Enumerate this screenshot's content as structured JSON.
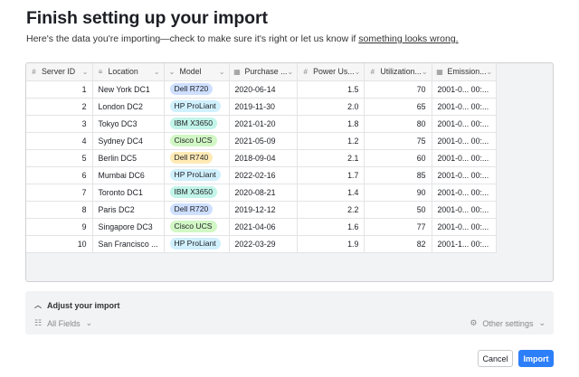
{
  "title": "Finish setting up your import",
  "subtitle": {
    "text": "Here's the data you're importing—check to make sure it's right or let us know if",
    "link": "something looks wrong."
  },
  "grid": {
    "columns": [
      {
        "label": "Server ID",
        "icon": "number-icon",
        "glyph": "#"
      },
      {
        "label": "Location",
        "icon": "text-icon",
        "glyph": "≡"
      },
      {
        "label": "Model",
        "icon": "single-select-icon",
        "glyph": "⌄"
      },
      {
        "label": "Purchase ...",
        "icon": "calendar-icon",
        "glyph": "▦"
      },
      {
        "label": "Power Us...",
        "icon": "number-icon",
        "glyph": "#"
      },
      {
        "label": "Utilization...",
        "icon": "number-icon",
        "glyph": "#"
      },
      {
        "label": "Emission...",
        "icon": "calendar-icon",
        "glyph": "▦"
      }
    ],
    "rows": [
      {
        "id": "1",
        "location": "New York DC1",
        "model": "Dell R720",
        "purchase": "2020-06-14",
        "power": "1.5",
        "util": "70",
        "emission": "2001-0... 00:..."
      },
      {
        "id": "2",
        "location": "London DC2",
        "model": "HP ProLiant",
        "purchase": "2019-11-30",
        "power": "2.0",
        "util": "65",
        "emission": "2001-0... 00:..."
      },
      {
        "id": "3",
        "location": "Tokyo DC3",
        "model": "IBM X3650",
        "purchase": "2021-01-20",
        "power": "1.8",
        "util": "80",
        "emission": "2001-0... 00:..."
      },
      {
        "id": "4",
        "location": "Sydney DC4",
        "model": "Cisco UCS",
        "purchase": "2021-05-09",
        "power": "1.2",
        "util": "75",
        "emission": "2001-0... 00:..."
      },
      {
        "id": "5",
        "location": "Berlin DC5",
        "model": "Dell R740",
        "purchase": "2018-09-04",
        "power": "2.1",
        "util": "60",
        "emission": "2001-0... 00:..."
      },
      {
        "id": "6",
        "location": "Mumbai DC6",
        "model": "HP ProLiant",
        "purchase": "2022-02-16",
        "power": "1.7",
        "util": "85",
        "emission": "2001-0... 00:..."
      },
      {
        "id": "7",
        "location": "Toronto DC1",
        "model": "IBM X3650",
        "purchase": "2020-08-21",
        "power": "1.4",
        "util": "90",
        "emission": "2001-0... 00:..."
      },
      {
        "id": "8",
        "location": "Paris DC2",
        "model": "Dell R720",
        "purchase": "2019-12-12",
        "power": "2.2",
        "util": "50",
        "emission": "2001-0... 00:..."
      },
      {
        "id": "9",
        "location": "Singapore DC3",
        "model": "Cisco UCS",
        "purchase": "2021-04-06",
        "power": "1.6",
        "util": "77",
        "emission": "2001-0... 00:..."
      },
      {
        "id": "10",
        "location": "San Francisco ...",
        "model": "HP ProLiant",
        "purchase": "2022-03-29",
        "power": "1.9",
        "util": "82",
        "emission": "2001-1... 00:..."
      }
    ]
  },
  "model_colors": {
    "Dell R720": "#cfdfff",
    "HP ProLiant": "#d0f0fd",
    "IBM X3650": "#c2f5e9",
    "Cisco UCS": "#d1f7c4",
    "Dell R740": "#ffeab6"
  },
  "adjust": {
    "label": "Adjust your import",
    "fields_label": "All Fields",
    "settings_label": "Other settings"
  },
  "buttons": {
    "cancel": "Cancel",
    "import": "Import",
    "import_color": "#2d7ff9"
  }
}
